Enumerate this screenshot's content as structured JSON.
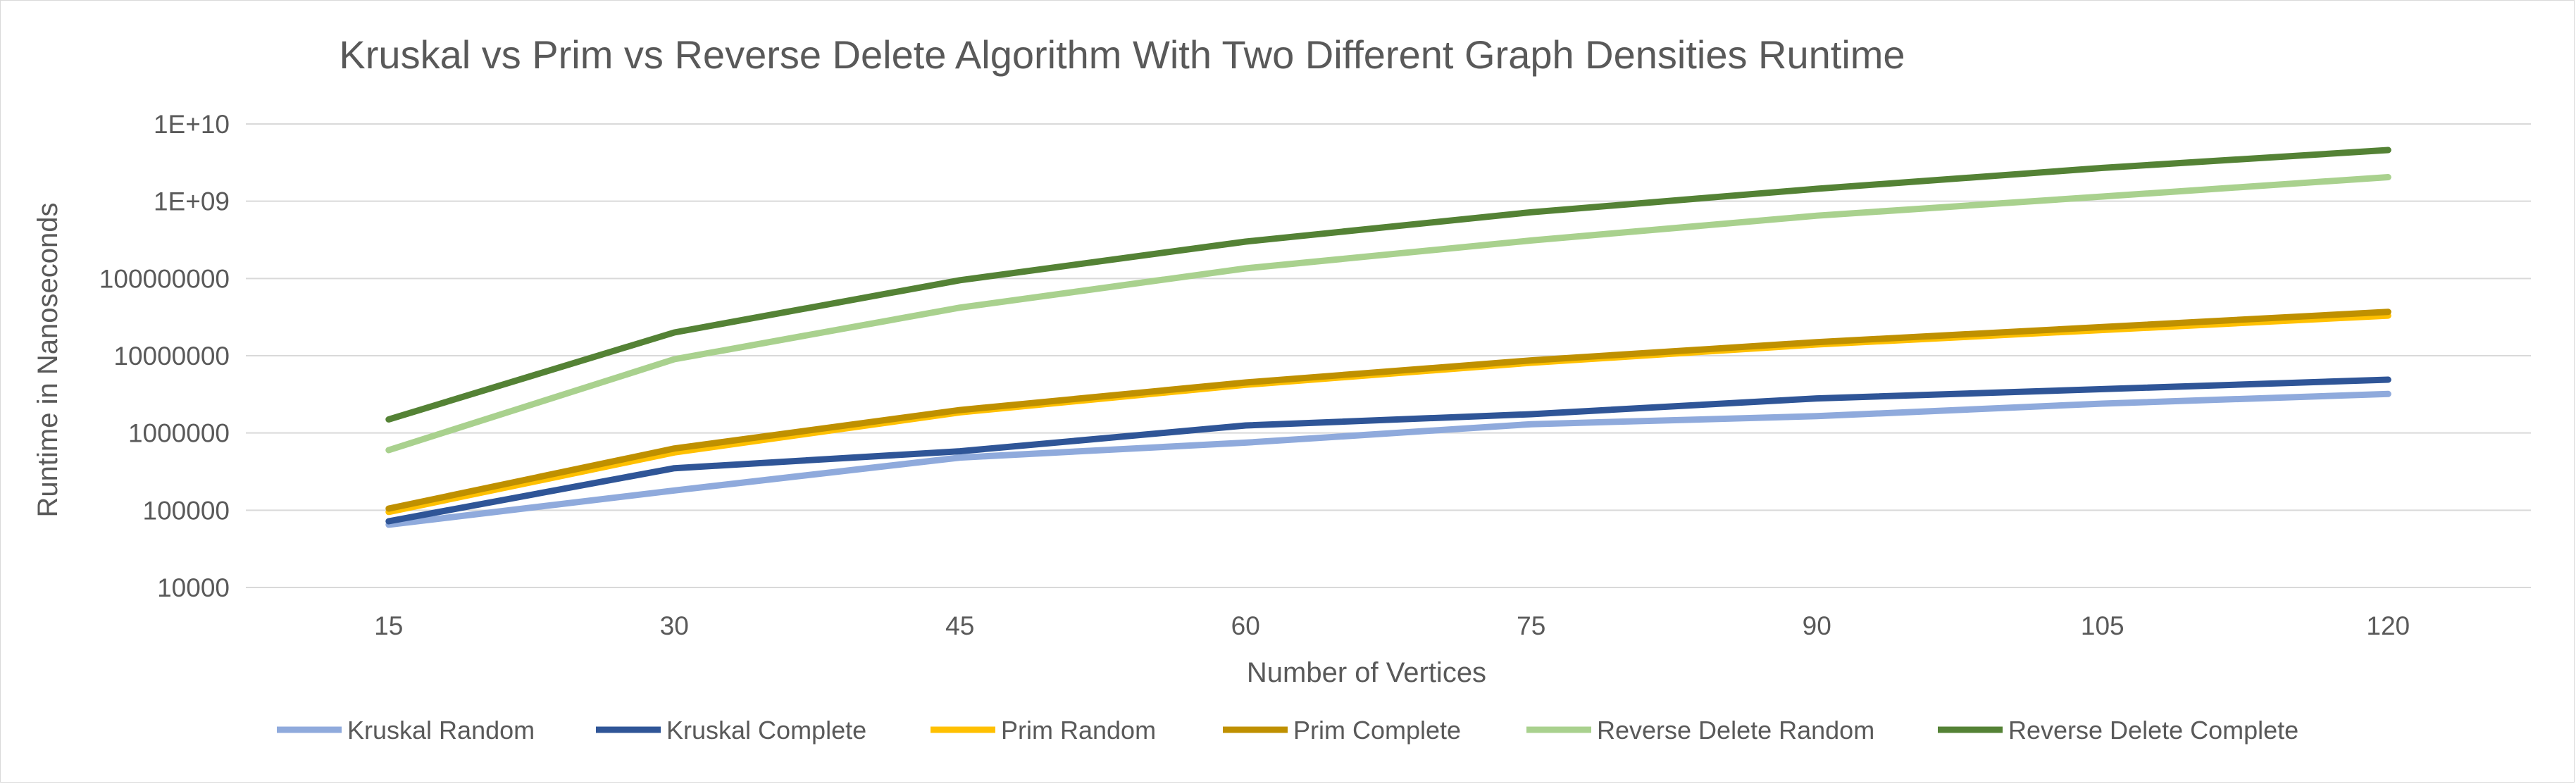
{
  "chart_data": {
    "type": "line",
    "title": "Kruskal vs Prim vs Reverse Delete Algorithm With Two Different Graph Densities Runtime",
    "xlabel": "Number of Vertices",
    "ylabel": "Runtime in Nanoseconds",
    "y_scale": "log10",
    "ylim": [
      10000,
      10000000000
    ],
    "y_ticks": [
      "10000",
      "100000",
      "1000000",
      "10000000",
      "100000000",
      "1E+09",
      "1E+10"
    ],
    "categories": [
      "15",
      "30",
      "45",
      "60",
      "75",
      "90",
      "105",
      "120"
    ],
    "grid": "horizontal",
    "legend_position": "bottom",
    "series": [
      {
        "name": "Kruskal Random",
        "color": "#8faadc",
        "values": [
          65000,
          180000,
          480000,
          750000,
          1300000,
          1650000,
          2400000,
          3200000
        ]
      },
      {
        "name": "Kruskal Complete",
        "color": "#2f5597",
        "values": [
          72000,
          350000,
          580000,
          1250000,
          1750000,
          2800000,
          3700000,
          4900000
        ]
      },
      {
        "name": "Prim Random",
        "color": "#ffc000",
        "values": [
          95000,
          560000,
          1850000,
          4200000,
          8100000,
          14000000,
          21500000,
          33000000
        ]
      },
      {
        "name": "Prim Complete",
        "color": "#bf9000",
        "values": [
          105000,
          630000,
          1980000,
          4500000,
          8700000,
          15000000,
          23500000,
          37000000
        ]
      },
      {
        "name": "Reverse Delete Random",
        "color": "#a9d18e",
        "values": [
          600000,
          9000000,
          42000000,
          135000000,
          310000000,
          650000000,
          1150000000,
          2050000000
        ]
      },
      {
        "name": "Reverse Delete Complete",
        "color": "#548235",
        "values": [
          1500000,
          20000000,
          95000000,
          300000000,
          720000000,
          1450000000,
          2700000000,
          4600000000
        ]
      }
    ]
  }
}
